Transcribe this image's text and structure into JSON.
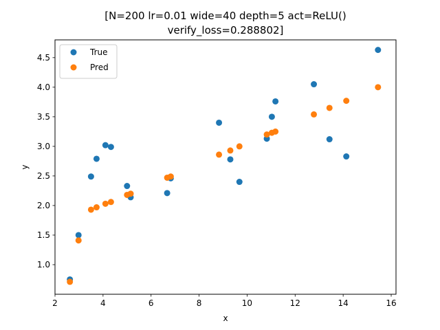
{
  "chart_data": {
    "type": "scatter",
    "title_lines": [
      "[N=200 lr=0.01 wide=40 depth=5 act=ReLU()",
      "verify_loss=0.288802]"
    ],
    "xlabel": "x",
    "ylabel": "y",
    "xlim": [
      2.0,
      16.2
    ],
    "ylim": [
      0.5,
      4.8
    ],
    "x_ticks": [
      2,
      4,
      6,
      8,
      10,
      12,
      14,
      16
    ],
    "y_ticks": [
      1.0,
      1.5,
      2.0,
      2.5,
      3.0,
      3.5,
      4.0,
      4.5
    ],
    "y_tick_labels": [
      "1.0",
      "1.5",
      "2.0",
      "2.5",
      "3.0",
      "3.5",
      "4.0",
      "4.5"
    ],
    "grid": false,
    "legend_position": "top-left",
    "series": [
      {
        "name": "True",
        "color": "#1f77b4",
        "x": [
          2.62,
          2.98,
          3.5,
          3.73,
          4.1,
          4.33,
          5.0,
          5.15,
          6.67,
          6.82,
          8.83,
          9.3,
          9.68,
          10.82,
          11.03,
          11.18,
          12.78,
          13.43,
          14.13,
          15.45
        ],
        "y": [
          0.75,
          1.5,
          2.49,
          2.79,
          3.02,
          2.99,
          2.33,
          2.14,
          2.21,
          2.46,
          3.4,
          2.78,
          2.4,
          3.13,
          3.5,
          3.76,
          4.05,
          3.12,
          2.83,
          4.63
        ]
      },
      {
        "name": "Pred",
        "color": "#ff7f0e",
        "x": [
          2.62,
          2.98,
          3.5,
          3.73,
          4.1,
          4.33,
          5.0,
          5.15,
          6.67,
          6.82,
          8.83,
          9.3,
          9.68,
          10.82,
          11.03,
          11.18,
          12.78,
          13.43,
          14.13,
          15.45
        ],
        "y": [
          0.71,
          1.41,
          1.93,
          1.97,
          2.03,
          2.06,
          2.18,
          2.2,
          2.47,
          2.49,
          2.86,
          2.93,
          3.0,
          3.2,
          3.23,
          3.25,
          3.54,
          3.65,
          3.77,
          4.0
        ]
      }
    ]
  }
}
